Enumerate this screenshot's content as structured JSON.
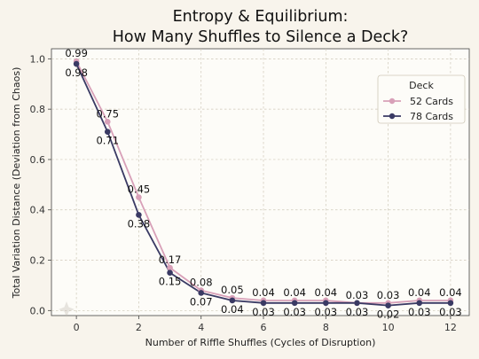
{
  "colors": {
    "page_background": "#f8f4ec",
    "plot_background": "#fdfcf8",
    "grid": "#cfc8b8",
    "series_52": "#d8a0b8",
    "series_78": "#3a3a64"
  },
  "chart_data": {
    "type": "line",
    "title_line1": "Entropy & Equilibrium:",
    "title_line2": "How Many Shuffles to Silence a Deck?",
    "xlabel": "Number of Riffle Shuffles (Cycles of Disruption)",
    "ylabel": "Total Variation Distance (Deviation from Chaos)",
    "x": [
      0,
      1,
      2,
      3,
      4,
      5,
      6,
      7,
      8,
      9,
      10,
      11,
      12
    ],
    "xlim": [
      -0.8,
      12.6
    ],
    "ylim": [
      -0.02,
      1.04
    ],
    "x_ticks": [
      0,
      2,
      4,
      6,
      8,
      10,
      12
    ],
    "y_ticks": [
      0.0,
      0.2,
      0.4,
      0.6,
      0.8,
      1.0
    ],
    "y_tick_labels": [
      "0.0",
      "0.2",
      "0.4",
      "0.6",
      "0.8",
      "1.0"
    ],
    "grid": true,
    "legend": {
      "title": "Deck",
      "placement": "top-right"
    },
    "series": [
      {
        "name": "52 Cards",
        "values": [
          0.99,
          0.75,
          0.45,
          0.17,
          0.08,
          0.05,
          0.04,
          0.04,
          0.04,
          0.03,
          0.03,
          0.04,
          0.04
        ],
        "labels": [
          "0.99",
          "0.75",
          "0.45",
          "0.17",
          "0.08",
          "0.05",
          "0.04",
          "0.04",
          "0.04",
          "0.03",
          "0.03",
          "0.04",
          "0.04"
        ]
      },
      {
        "name": "78 Cards",
        "values": [
          0.98,
          0.71,
          0.38,
          0.15,
          0.07,
          0.04,
          0.03,
          0.03,
          0.03,
          0.03,
          0.02,
          0.03,
          0.03
        ],
        "labels": [
          "0.98",
          "0.71",
          "0.38",
          "0.15",
          "0.07",
          "0.04",
          "0.03",
          "0.03",
          "0.03",
          "0.03",
          "0.02",
          "0.03",
          "0.03"
        ]
      }
    ]
  }
}
